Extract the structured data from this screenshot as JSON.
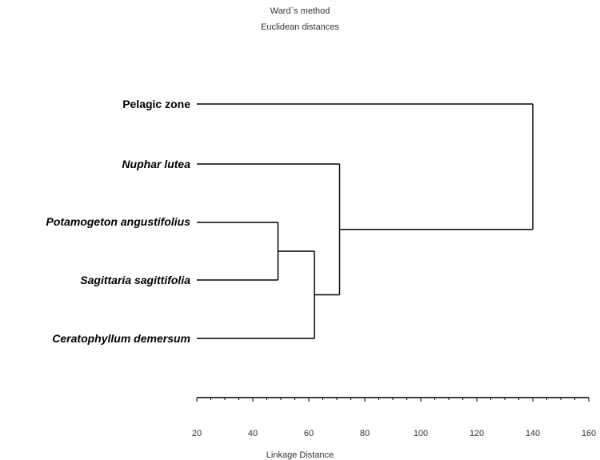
{
  "title_line1": "Ward`s method",
  "title_line2": "Euclidean distances",
  "leaves": [
    {
      "label": "Pelagic zone",
      "italic": false
    },
    {
      "label": "Nuphar lutea",
      "italic": true
    },
    {
      "label": "Potamogeton angustifolius",
      "italic": true
    },
    {
      "label": "Sagittaria sagittifolia",
      "italic": true
    },
    {
      "label": "Ceratophyllum demersum",
      "italic": true
    }
  ],
  "merges": [
    {
      "left": "Potamogeton angustifolius",
      "right": "Sagittaria sagittifolia",
      "distance": 49
    },
    {
      "left": "cluster1",
      "right": "Ceratophyllum demersum",
      "distance": 62
    },
    {
      "left": "Nuphar lutea",
      "right": "cluster2",
      "distance": 71
    },
    {
      "left": "Pelagic zone",
      "right": "cluster3",
      "distance": 140
    }
  ],
  "axis": {
    "title": "Linkage Distance",
    "min": 20,
    "max": 160,
    "major_ticks": [
      "20",
      "40",
      "60",
      "80",
      "100",
      "120",
      "140",
      "160"
    ],
    "minor_step": 5
  }
}
